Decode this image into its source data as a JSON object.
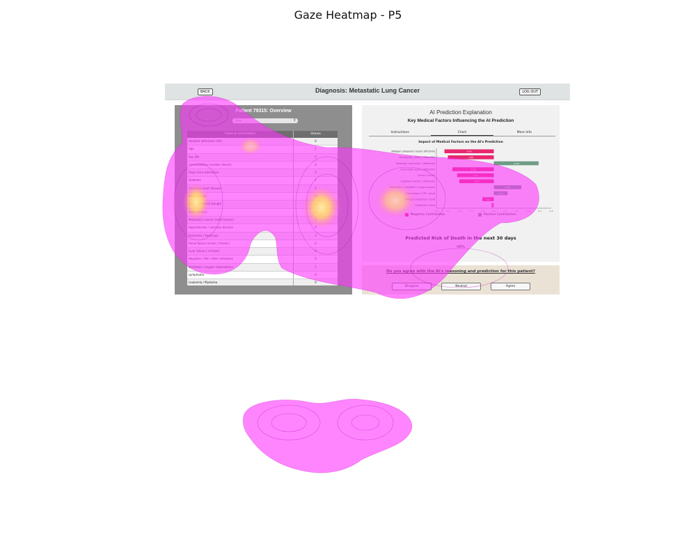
{
  "figure": {
    "title": "Gaze Heatmap - P5"
  },
  "app": {
    "back_label": "BACK",
    "logout_label": "LOG OUT",
    "diagnosis_title": "Diagnosis: Metastatic Lung Cancer"
  },
  "patient_panel": {
    "title": "Patient 79315: Overview",
    "search_placeholder": "Filter",
    "columns": [
      "Vitals & Information",
      "Values"
    ],
    "rows": [
      [
        "Hospital admission (HA)",
        "0"
      ],
      [
        "Age",
        "1"
      ],
      [
        "Sex (M)",
        "0"
      ],
      [
        "Comorbidities (number illness)",
        "0"
      ],
      [
        "Days since admission",
        "5"
      ],
      [
        "Diabetes",
        "1"
      ],
      [
        "Coronary heart disease",
        "0"
      ],
      [
        "Heart Failure",
        "0"
      ],
      [
        "Acute problems (tough)",
        "1"
      ],
      [
        "Other history",
        "0"
      ],
      [
        "Metastatic cancer (solid tumors)",
        "1"
      ],
      [
        "Hypertension / vascular disease",
        "0"
      ],
      [
        "Dementia / Parkinson",
        "1"
      ],
      [
        "Renal failure (acute / chronic)",
        "0"
      ],
      [
        "Liver failure / cirrhosis",
        "0"
      ],
      [
        "Hepatitis / HIV / other infections",
        "0"
      ],
      [
        "Ventilator / oxygen dependence",
        "1"
      ],
      [
        "Lymphoma",
        "0"
      ],
      [
        "Leukemia / Myeloma",
        "0"
      ],
      [
        "Cognitive problem",
        "0"
      ],
      [
        "Constipation",
        "0"
      ]
    ]
  },
  "explanation_panel": {
    "title": "AI Prediction Explanation",
    "subtitle": "Key Medical Factors Influencing the AI Prediction",
    "tabs": [
      "Instructions",
      "Chart",
      "More Info"
    ],
    "active_tab": "Chart",
    "chart_title": "Impact of Medical Factors on the AI's Prediction",
    "legend_negative": "Negative Contribution",
    "legend_positive": "Positive Contribution",
    "negative_color": "#e8266f",
    "positive_color": "#6f9c86",
    "risk_label": "Predicted Risk of Death in the next 30 days",
    "risk_value": "49%"
  },
  "chart_data": {
    "type": "bar",
    "orientation": "horizontal",
    "categories": [
      "Nitrogen compound / result / diff (imm)",
      "Hemoglobin / blood / differential",
      "Metastatic solid tumor / differential",
      "Comorbidity count / differential",
      "Cancer / results",
      "Cognitive function / differential",
      "Respiratory / ventilator / oxygen support",
      "Heart attack / CHF / result",
      "Nitrogen compound / result",
      "Creatinine / result"
    ],
    "values": [
      -0.43,
      -0.4,
      0.39,
      -0.36,
      -0.32,
      -0.3,
      0.24,
      0.12,
      -0.1,
      -0.02
    ],
    "value_labels": [
      "-0.43",
      "-0.40",
      "+0.39",
      "-0.36",
      "-0.32",
      "-0.30",
      "+0.24",
      "+0.12",
      "-0.10",
      "-0.02"
    ],
    "xlim": [
      -0.5,
      0.5
    ],
    "xticks": [
      "-0.5",
      "-0.4",
      "-0.3",
      "-0.2",
      "-0.1",
      "0.0",
      "0.1",
      "0.2",
      "0.3",
      "0.4",
      "0.5"
    ]
  },
  "agree_panel": {
    "question": "Do you agree with the AI's reasoning and prediction for this patient?",
    "buttons": [
      "Disagree",
      "Neutral",
      "Agree"
    ]
  },
  "heatmap": {
    "color": "#ff33ff",
    "hot_color": "#ffdd55"
  }
}
